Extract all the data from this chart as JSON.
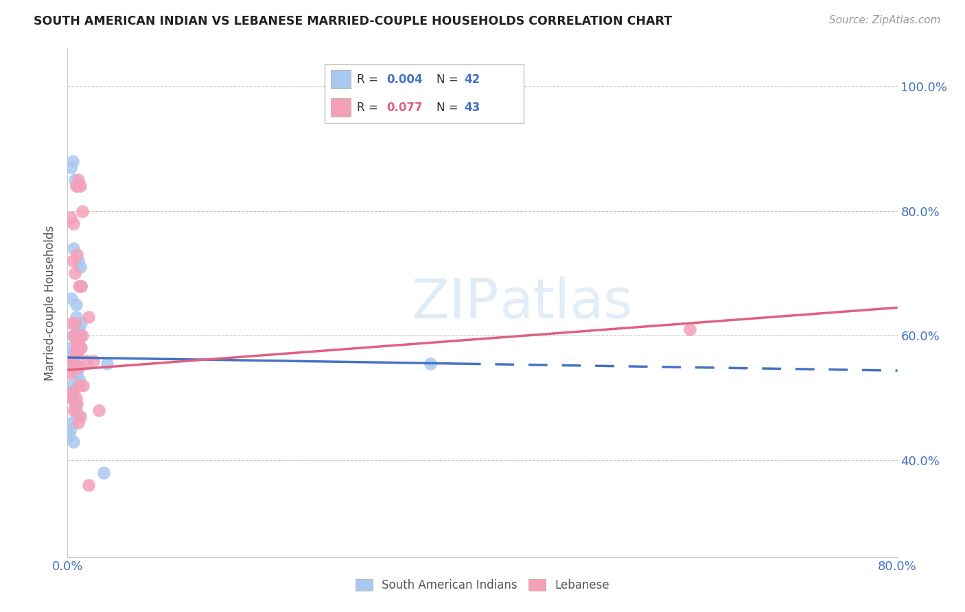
{
  "title": "SOUTH AMERICAN INDIAN VS LEBANESE MARRIED-COUPLE HOUSEHOLDS CORRELATION CHART",
  "source": "Source: ZipAtlas.com",
  "ylabel": "Married-couple Households",
  "color_blue": "#A8C8F0",
  "color_pink": "#F4A0B8",
  "color_blue_line": "#4472C4",
  "color_pink_line": "#E06080",
  "color_axis": "#4472C4",
  "background_color": "#FFFFFF",
  "watermark": "ZIPatlas",
  "xlim": [
    0.0,
    0.8
  ],
  "ylim": [
    0.245,
    1.06
  ],
  "legend_R1": "0.004",
  "legend_N1": "42",
  "legend_R2": "0.077",
  "legend_N2": "43",
  "blue_x": [
    0.003,
    0.005,
    0.007,
    0.009,
    0.01,
    0.012,
    0.013,
    0.006,
    0.008,
    0.004,
    0.005,
    0.007,
    0.008,
    0.009,
    0.011,
    0.012,
    0.003,
    0.006,
    0.004,
    0.007,
    0.008,
    0.01,
    0.005,
    0.006,
    0.009,
    0.011,
    0.013,
    0.003,
    0.004,
    0.006,
    0.007,
    0.008,
    0.01,
    0.005,
    0.004,
    0.003,
    0.002,
    0.006,
    0.035,
    0.006,
    0.038,
    0.35
  ],
  "blue_y": [
    0.87,
    0.88,
    0.85,
    0.84,
    0.72,
    0.71,
    0.68,
    0.74,
    0.63,
    0.66,
    0.6,
    0.62,
    0.65,
    0.6,
    0.61,
    0.58,
    0.58,
    0.57,
    0.56,
    0.57,
    0.59,
    0.6,
    0.55,
    0.56,
    0.54,
    0.53,
    0.62,
    0.52,
    0.51,
    0.5,
    0.49,
    0.48,
    0.47,
    0.5,
    0.46,
    0.45,
    0.44,
    0.43,
    0.38,
    0.57,
    0.555,
    0.555
  ],
  "pink_x": [
    0.003,
    0.008,
    0.01,
    0.012,
    0.014,
    0.006,
    0.009,
    0.005,
    0.007,
    0.011,
    0.013,
    0.004,
    0.008,
    0.01,
    0.006,
    0.007,
    0.009,
    0.012,
    0.005,
    0.008,
    0.011,
    0.013,
    0.003,
    0.006,
    0.009,
    0.01,
    0.014,
    0.004,
    0.007,
    0.011,
    0.005,
    0.008,
    0.009,
    0.012,
    0.006,
    0.01,
    0.02,
    0.025,
    0.015,
    0.018,
    0.03,
    0.6,
    0.02
  ],
  "pink_y": [
    0.79,
    0.84,
    0.85,
    0.84,
    0.8,
    0.78,
    0.73,
    0.72,
    0.7,
    0.68,
    0.68,
    0.62,
    0.58,
    0.58,
    0.6,
    0.62,
    0.59,
    0.6,
    0.56,
    0.57,
    0.55,
    0.58,
    0.54,
    0.56,
    0.57,
    0.59,
    0.6,
    0.5,
    0.55,
    0.52,
    0.51,
    0.5,
    0.49,
    0.47,
    0.48,
    0.46,
    0.63,
    0.56,
    0.52,
    0.56,
    0.48,
    0.61,
    0.36
  ]
}
